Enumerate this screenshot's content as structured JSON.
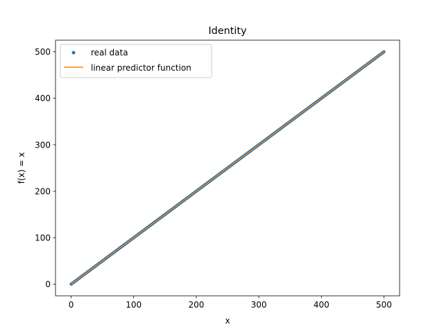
{
  "chart_data": {
    "type": "line",
    "title": "Identity",
    "xlabel": "x",
    "ylabel": "f(x) = x",
    "xlim": [
      -25,
      525
    ],
    "ylim": [
      -25,
      525
    ],
    "xticks": [
      0,
      100,
      200,
      300,
      400,
      500
    ],
    "yticks": [
      0,
      100,
      200,
      300,
      400,
      500
    ],
    "grid": false,
    "legend_position": "upper-left",
    "series": [
      {
        "name": "real data",
        "kind": "scatter",
        "color": "#1f77b4",
        "x_range": [
          0,
          500
        ],
        "step": 1,
        "equation": "y = x"
      },
      {
        "name": "linear predictor function",
        "kind": "line",
        "color": "#ff7f0e",
        "x": [
          0,
          500
        ],
        "y": [
          0,
          500
        ]
      }
    ]
  }
}
